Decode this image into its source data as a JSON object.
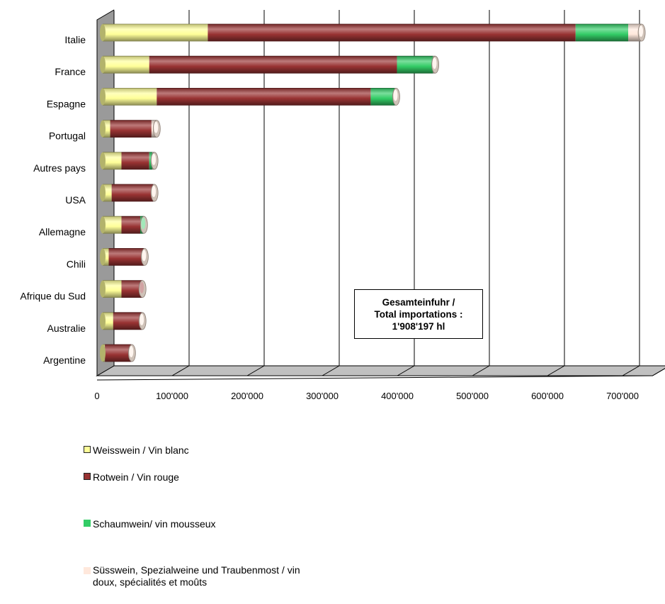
{
  "chart_data": {
    "type": "bar",
    "orientation": "horizontal",
    "stacked": true,
    "style": "3d-cylinder",
    "categories": [
      "Italie",
      "France",
      "Espagne",
      "Portugal",
      "Autres pays",
      "USA",
      "Allemagne",
      "Chili",
      "Afrique du Sud",
      "Australie",
      "Argentine"
    ],
    "series": [
      {
        "name": "Weisswein / Vin blanc",
        "color": "#FFFF99",
        "values": [
          140000,
          62000,
          72000,
          10000,
          25000,
          12000,
          25000,
          8000,
          25000,
          14000,
          3000
        ]
      },
      {
        "name": "Rotwein / Vin rouge",
        "color": "#993333",
        "values": [
          490000,
          330000,
          285000,
          55000,
          37000,
          55000,
          25000,
          47000,
          28000,
          38000,
          35000
        ]
      },
      {
        "name": "Schaumwein/ vin mousseux",
        "color": "#33CC66",
        "values": [
          70000,
          48000,
          32000,
          0,
          4000,
          0,
          5000,
          0,
          0,
          0,
          0
        ]
      },
      {
        "name": "Süsswein, Spezialweine  und Traubenmost / vin doux, spécialités et moûts",
        "color": "#FFE8DC",
        "values": [
          18000,
          3000,
          2000,
          7000,
          3000,
          2000,
          0,
          1000,
          0,
          1000,
          1000
        ]
      }
    ],
    "xlim": [
      0,
      700000
    ],
    "xticks": [
      0,
      100000,
      200000,
      300000,
      400000,
      500000,
      600000,
      700000
    ],
    "xtick_labels": [
      "0",
      "100'000",
      "200'000",
      "300'000",
      "400'000",
      "500'000",
      "600'000",
      "700'000"
    ],
    "grid": true,
    "legend_position": "bottom-left",
    "annotation": {
      "line1": "Gesamteinfuhr /",
      "line2": "Total importations :",
      "line3": "1'908'197  hl"
    }
  }
}
